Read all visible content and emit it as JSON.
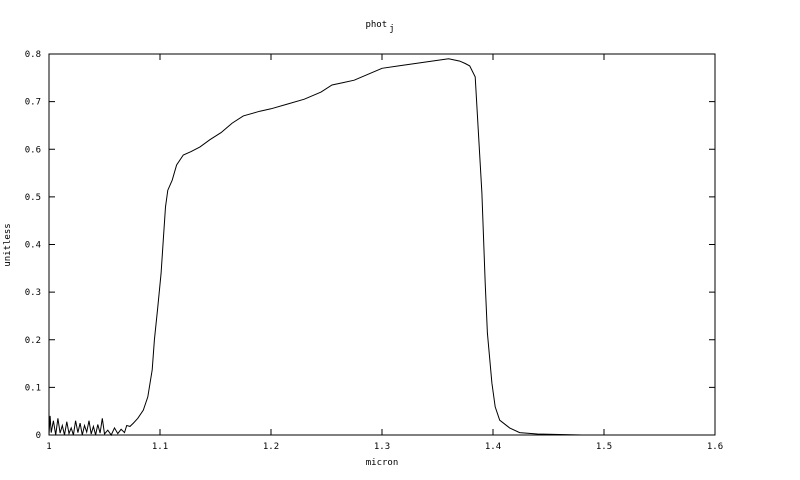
{
  "chart_data": {
    "type": "line",
    "title": "phot",
    "title_subscript": "j",
    "xlabel": "micron",
    "ylabel": "unitless",
    "xlim": [
      1.0,
      1.6
    ],
    "ylim": [
      0,
      0.8
    ],
    "xticks": [
      "1",
      "1.1",
      "1.2",
      "1.3",
      "1.4",
      "1.5",
      "1.6"
    ],
    "yticks": [
      "0",
      "0.1",
      "0.2",
      "0.3",
      "0.4",
      "0.5",
      "0.6",
      "0.7",
      "0.8"
    ],
    "grid": false,
    "line_color": "#000000",
    "series": [
      {
        "x": [
          1.0,
          1.001,
          1.002,
          1.004,
          1.006,
          1.008,
          1.01,
          1.012,
          1.014,
          1.016,
          1.018,
          1.02,
          1.022,
          1.024,
          1.026,
          1.028,
          1.03,
          1.032,
          1.034,
          1.036,
          1.038,
          1.04,
          1.042,
          1.044,
          1.046,
          1.048,
          1.05,
          1.053,
          1.056,
          1.059,
          1.062,
          1.065,
          1.068,
          1.07,
          1.073,
          1.076,
          1.08,
          1.085,
          1.089,
          1.093,
          1.095,
          1.098,
          1.101,
          1.103,
          1.105,
          1.107,
          1.111,
          1.115,
          1.121,
          1.128,
          1.136,
          1.145,
          1.155,
          1.165,
          1.175,
          1.19,
          1.2,
          1.215,
          1.23,
          1.245,
          1.255,
          1.265,
          1.275,
          1.285,
          1.3,
          1.315,
          1.33,
          1.345,
          1.36,
          1.37,
          1.375,
          1.379,
          1.384,
          1.386,
          1.39,
          1.393,
          1.395,
          1.399,
          1.402,
          1.406,
          1.415,
          1.424,
          1.44,
          1.46,
          1.48,
          1.5,
          1.52,
          1.55,
          1.58,
          1.6
        ],
        "y": [
          0.0,
          0.04,
          0.005,
          0.03,
          0.0,
          0.035,
          0.004,
          0.02,
          0.0,
          0.028,
          0.003,
          0.015,
          0.0,
          0.03,
          0.005,
          0.025,
          0.0,
          0.02,
          0.006,
          0.03,
          0.002,
          0.018,
          0.0,
          0.022,
          0.004,
          0.035,
          0.002,
          0.01,
          0.0,
          0.015,
          0.003,
          0.012,
          0.005,
          0.02,
          0.018,
          0.025,
          0.035,
          0.052,
          0.08,
          0.137,
          0.2,
          0.269,
          0.34,
          0.41,
          0.479,
          0.514,
          0.535,
          0.567,
          0.588,
          0.595,
          0.605,
          0.62,
          0.635,
          0.655,
          0.67,
          0.68,
          0.685,
          0.695,
          0.705,
          0.72,
          0.735,
          0.74,
          0.745,
          0.755,
          0.77,
          0.775,
          0.78,
          0.785,
          0.79,
          0.785,
          0.78,
          0.775,
          0.752,
          0.668,
          0.508,
          0.319,
          0.214,
          0.109,
          0.059,
          0.031,
          0.015,
          0.005,
          0.002,
          0.001,
          0.0,
          0.0,
          0.0,
          0.0,
          0.0,
          0.0
        ]
      }
    ]
  }
}
